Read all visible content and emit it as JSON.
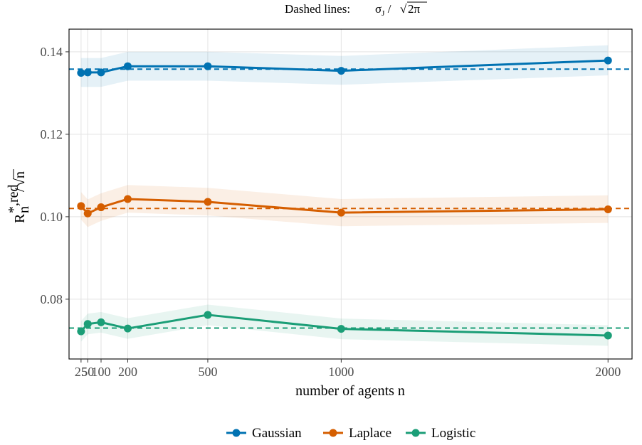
{
  "chart_data": {
    "type": "line",
    "title": "Dashed lines:",
    "title_formula": {
      "base": "σ",
      "sub": "J",
      "root": "2π"
    },
    "xlabel": "number of agents  n",
    "ylabel": {
      "base": "R",
      "sub": "n",
      "sup": "*,red",
      "root": "n"
    },
    "x": [
      25,
      50,
      100,
      200,
      500,
      1000,
      2000
    ],
    "xticks": [
      "25",
      "50",
      "100",
      "200",
      "500",
      "1000",
      "2000"
    ],
    "yticks": [
      0.08,
      0.1,
      0.12,
      0.14
    ],
    "ytick_labels": [
      "0.08",
      "0.10",
      "0.12",
      "0.14"
    ],
    "xlim": [
      -20,
      2090
    ],
    "ylim": [
      0.0655,
      0.1455
    ],
    "grid": true,
    "legend_position": "bottom",
    "series": [
      {
        "name": "Gaussian",
        "color": "#0072B2",
        "values": [
          0.1349,
          0.135,
          0.135,
          0.1365,
          0.1365,
          0.1354,
          0.1379
        ],
        "lower": [
          0.1315,
          0.1315,
          0.1315,
          0.133,
          0.133,
          0.132,
          0.1343
        ],
        "upper": [
          0.1385,
          0.1385,
          0.1385,
          0.14,
          0.14,
          0.139,
          0.1416
        ],
        "reference": 0.1358
      },
      {
        "name": "Laplace",
        "color": "#D55E00",
        "values": [
          0.1026,
          0.1008,
          0.1023,
          0.1043,
          0.1036,
          0.101,
          0.1018
        ],
        "lower": [
          0.0993,
          0.0975,
          0.099,
          0.101,
          0.1003,
          0.0977,
          0.0985
        ],
        "upper": [
          0.106,
          0.1042,
          0.1057,
          0.1077,
          0.107,
          0.1043,
          0.1052
        ],
        "reference": 0.102
      },
      {
        "name": "Logistic",
        "color": "#1B9E77",
        "values": [
          0.0722,
          0.074,
          0.0744,
          0.0729,
          0.0762,
          0.0728,
          0.0712
        ],
        "lower": [
          0.0697,
          0.0715,
          0.0719,
          0.0704,
          0.0737,
          0.0703,
          0.0687
        ],
        "upper": [
          0.0747,
          0.0765,
          0.0769,
          0.0754,
          0.0787,
          0.0753,
          0.0737
        ],
        "reference": 0.073
      }
    ]
  }
}
